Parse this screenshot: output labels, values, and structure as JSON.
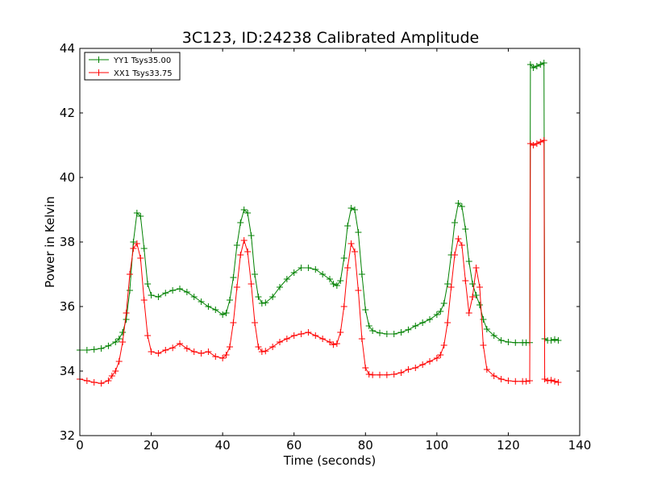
{
  "chart_data": {
    "type": "line",
    "title": "3C123, ID:24238 Calibrated Amplitude",
    "xlabel": "Time (seconds)",
    "ylabel": "Power in Kelvin",
    "xlim": [
      0,
      140
    ],
    "ylim": [
      32,
      44
    ],
    "xticks": [
      "0",
      "20",
      "40",
      "60",
      "80",
      "100",
      "120",
      "140"
    ],
    "yticks": [
      "32",
      "34",
      "36",
      "38",
      "40",
      "42",
      "44"
    ],
    "grid": false,
    "legend_position": "top-left",
    "marker": "plus",
    "series": [
      {
        "name": "YY1 Tsys35.00",
        "color": "#008000",
        "points": [
          [
            0,
            34.65
          ],
          [
            2,
            34.65
          ],
          [
            4,
            34.67
          ],
          [
            6,
            34.7
          ],
          [
            8,
            34.78
          ],
          [
            10,
            34.9
          ],
          [
            11,
            35.0
          ],
          [
            12,
            35.2
          ],
          [
            13,
            35.6
          ],
          [
            14,
            36.5
          ],
          [
            15,
            38.0
          ],
          [
            16,
            38.9
          ],
          [
            17,
            38.8
          ],
          [
            18,
            37.8
          ],
          [
            19,
            36.7
          ],
          [
            20,
            36.35
          ],
          [
            22,
            36.3
          ],
          [
            24,
            36.42
          ],
          [
            26,
            36.5
          ],
          [
            28,
            36.55
          ],
          [
            30,
            36.45
          ],
          [
            32,
            36.3
          ],
          [
            34,
            36.15
          ],
          [
            36,
            36.0
          ],
          [
            38,
            35.9
          ],
          [
            40,
            35.75
          ],
          [
            41,
            35.8
          ],
          [
            42,
            36.2
          ],
          [
            43,
            36.9
          ],
          [
            44,
            37.9
          ],
          [
            45,
            38.6
          ],
          [
            46,
            39.0
          ],
          [
            47,
            38.9
          ],
          [
            48,
            38.2
          ],
          [
            49,
            37.0
          ],
          [
            50,
            36.3
          ],
          [
            51,
            36.1
          ],
          [
            52,
            36.12
          ],
          [
            54,
            36.3
          ],
          [
            56,
            36.6
          ],
          [
            58,
            36.85
          ],
          [
            60,
            37.05
          ],
          [
            62,
            37.2
          ],
          [
            64,
            37.2
          ],
          [
            66,
            37.15
          ],
          [
            68,
            37.0
          ],
          [
            70,
            36.85
          ],
          [
            71,
            36.7
          ],
          [
            72,
            36.65
          ],
          [
            73,
            36.8
          ],
          [
            74,
            37.5
          ],
          [
            75,
            38.5
          ],
          [
            76,
            39.05
          ],
          [
            77,
            39.0
          ],
          [
            78,
            38.3
          ],
          [
            79,
            37.0
          ],
          [
            80,
            35.9
          ],
          [
            81,
            35.4
          ],
          [
            82,
            35.25
          ],
          [
            84,
            35.18
          ],
          [
            86,
            35.15
          ],
          [
            88,
            35.15
          ],
          [
            90,
            35.2
          ],
          [
            92,
            35.28
          ],
          [
            94,
            35.4
          ],
          [
            96,
            35.5
          ],
          [
            98,
            35.6
          ],
          [
            100,
            35.75
          ],
          [
            101,
            35.85
          ],
          [
            102,
            36.1
          ],
          [
            103,
            36.7
          ],
          [
            104,
            37.6
          ],
          [
            105,
            38.6
          ],
          [
            106,
            39.2
          ],
          [
            107,
            39.1
          ],
          [
            108,
            38.4
          ],
          [
            109,
            37.4
          ],
          [
            110,
            36.7
          ],
          [
            111,
            36.35
          ],
          [
            112,
            36.05
          ],
          [
            113,
            35.6
          ],
          [
            114,
            35.3
          ],
          [
            116,
            35.1
          ],
          [
            118,
            34.95
          ],
          [
            120,
            34.9
          ],
          [
            122,
            34.88
          ],
          [
            124,
            34.88
          ],
          [
            125,
            34.88
          ],
          [
            126,
            34.88
          ],
          [
            126.2,
            43.5
          ],
          [
            127,
            43.4
          ],
          [
            128,
            43.45
          ],
          [
            129,
            43.5
          ],
          [
            130,
            43.55
          ],
          [
            130.2,
            35.0
          ],
          [
            131,
            34.95
          ],
          [
            132,
            34.95
          ],
          [
            133,
            34.98
          ],
          [
            134,
            34.95
          ]
        ]
      },
      {
        "name": "XX1 Tsys33.75",
        "color": "#ff0000",
        "points": [
          [
            0,
            33.75
          ],
          [
            2,
            33.7
          ],
          [
            4,
            33.65
          ],
          [
            6,
            33.62
          ],
          [
            8,
            33.7
          ],
          [
            9,
            33.85
          ],
          [
            10,
            34.0
          ],
          [
            11,
            34.3
          ],
          [
            12,
            34.9
          ],
          [
            13,
            35.8
          ],
          [
            14,
            37.0
          ],
          [
            15,
            37.8
          ],
          [
            16,
            37.95
          ],
          [
            17,
            37.5
          ],
          [
            18,
            36.2
          ],
          [
            19,
            35.1
          ],
          [
            20,
            34.6
          ],
          [
            22,
            34.55
          ],
          [
            24,
            34.65
          ],
          [
            26,
            34.72
          ],
          [
            28,
            34.85
          ],
          [
            30,
            34.7
          ],
          [
            32,
            34.6
          ],
          [
            34,
            34.55
          ],
          [
            36,
            34.6
          ],
          [
            38,
            34.45
          ],
          [
            40,
            34.4
          ],
          [
            41,
            34.5
          ],
          [
            42,
            34.75
          ],
          [
            43,
            35.5
          ],
          [
            44,
            36.6
          ],
          [
            45,
            37.6
          ],
          [
            46,
            38.05
          ],
          [
            47,
            37.7
          ],
          [
            48,
            36.7
          ],
          [
            49,
            35.5
          ],
          [
            50,
            34.75
          ],
          [
            51,
            34.6
          ],
          [
            52,
            34.62
          ],
          [
            54,
            34.75
          ],
          [
            56,
            34.9
          ],
          [
            58,
            35.0
          ],
          [
            60,
            35.1
          ],
          [
            62,
            35.15
          ],
          [
            64,
            35.2
          ],
          [
            66,
            35.1
          ],
          [
            68,
            35.0
          ],
          [
            70,
            34.9
          ],
          [
            71,
            34.82
          ],
          [
            72,
            34.85
          ],
          [
            73,
            35.2
          ],
          [
            74,
            36.0
          ],
          [
            75,
            37.2
          ],
          [
            76,
            37.95
          ],
          [
            77,
            37.7
          ],
          [
            78,
            36.5
          ],
          [
            79,
            35.0
          ],
          [
            80,
            34.1
          ],
          [
            81,
            33.9
          ],
          [
            82,
            33.88
          ],
          [
            84,
            33.88
          ],
          [
            86,
            33.88
          ],
          [
            88,
            33.9
          ],
          [
            90,
            33.95
          ],
          [
            92,
            34.05
          ],
          [
            94,
            34.1
          ],
          [
            96,
            34.2
          ],
          [
            98,
            34.3
          ],
          [
            100,
            34.4
          ],
          [
            101,
            34.5
          ],
          [
            102,
            34.8
          ],
          [
            103,
            35.5
          ],
          [
            104,
            36.6
          ],
          [
            105,
            37.6
          ],
          [
            106,
            38.1
          ],
          [
            107,
            37.9
          ],
          [
            108,
            36.8
          ],
          [
            109,
            35.8
          ],
          [
            110,
            36.3
          ],
          [
            111,
            37.2
          ],
          [
            112,
            36.6
          ],
          [
            113,
            34.8
          ],
          [
            114,
            34.05
          ],
          [
            116,
            33.85
          ],
          [
            118,
            33.75
          ],
          [
            120,
            33.7
          ],
          [
            122,
            33.68
          ],
          [
            124,
            33.68
          ],
          [
            125,
            33.68
          ],
          [
            126,
            33.7
          ],
          [
            126.2,
            41.05
          ],
          [
            127,
            41.0
          ],
          [
            128,
            41.05
          ],
          [
            129,
            41.1
          ],
          [
            130,
            41.15
          ],
          [
            130.2,
            33.75
          ],
          [
            131,
            33.7
          ],
          [
            132,
            33.72
          ],
          [
            133,
            33.68
          ],
          [
            134,
            33.65
          ]
        ]
      }
    ]
  }
}
